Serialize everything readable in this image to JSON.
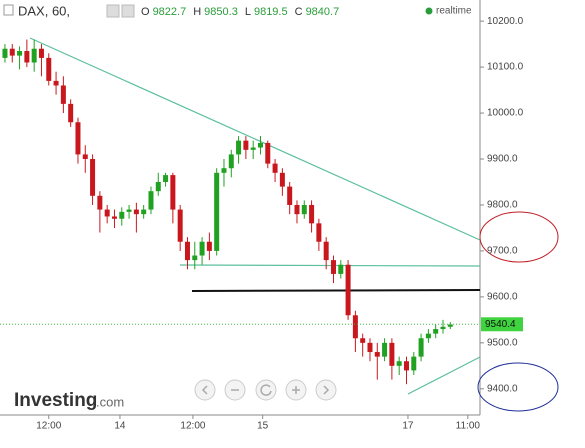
{
  "chart_data": {
    "type": "candlestick",
    "title": "DAX, 60,",
    "ohlc_legend": [
      {
        "label": "O",
        "value": 9822.7
      },
      {
        "label": "H",
        "value": 9850.3
      },
      {
        "label": "L",
        "value": 9819.5
      },
      {
        "label": "C",
        "value": 9840.7
      }
    ],
    "status": "realtime",
    "last_price": 9540.4,
    "up_color": "#21a121",
    "down_color": "#c8181e",
    "open": [
      10120,
      10140,
      10125,
      10135,
      10110,
      10140,
      10120,
      10070,
      10060,
      10020,
      9980,
      9910,
      9900,
      9820,
      9790,
      9775,
      9770,
      9785,
      9790,
      9780,
      9790,
      9830,
      9850,
      9865,
      9790,
      9720,
      9680,
      9690,
      9720,
      9700,
      9870,
      9880,
      9910,
      9940,
      9920,
      9925,
      9935,
      9890,
      9870,
      9840,
      9800,
      9780,
      9800,
      9760,
      9720,
      9680,
      9650,
      9670,
      9560,
      9510,
      9500,
      9480,
      9470,
      9500,
      9450,
      9460,
      9440,
      9470,
      9510,
      9520,
      9530,
      9535
    ],
    "high": [
      10150,
      10150,
      10145,
      10160,
      10160,
      10150,
      10130,
      10090,
      10080,
      10030,
      9990,
      9930,
      9910,
      9830,
      9800,
      9790,
      9795,
      9800,
      9805,
      9800,
      9840,
      9870,
      9870,
      9870,
      9800,
      9730,
      9720,
      9730,
      9740,
      9880,
      9900,
      9920,
      9950,
      9950,
      9940,
      9950,
      9940,
      9900,
      9880,
      9850,
      9810,
      9810,
      9810,
      9770,
      9730,
      9690,
      9680,
      9680,
      9570,
      9520,
      9510,
      9500,
      9510,
      9510,
      9470,
      9470,
      9480,
      9520,
      9530,
      9540,
      9550,
      9545
    ],
    "low": [
      10110,
      10110,
      10095,
      10100,
      10090,
      10080,
      10060,
      10040,
      10000,
      9970,
      9890,
      9870,
      9800,
      9740,
      9760,
      9750,
      9755,
      9770,
      9740,
      9770,
      9780,
      9820,
      9840,
      9760,
      9700,
      9660,
      9660,
      9670,
      9680,
      9690,
      9840,
      9860,
      9890,
      9900,
      9900,
      9910,
      9880,
      9850,
      9820,
      9780,
      9760,
      9770,
      9740,
      9700,
      9660,
      9630,
      9640,
      9550,
      9480,
      9470,
      9460,
      9420,
      9460,
      9420,
      9430,
      9410,
      9430,
      9460,
      9500,
      9510,
      9520,
      9530
    ],
    "close": [
      10140,
      10125,
      10135,
      10110,
      10140,
      10120,
      10070,
      10060,
      10020,
      9980,
      9910,
      9900,
      9820,
      9790,
      9775,
      9770,
      9785,
      9790,
      9780,
      9790,
      9830,
      9850,
      9865,
      9790,
      9720,
      9680,
      9690,
      9720,
      9700,
      9870,
      9880,
      9910,
      9940,
      9920,
      9925,
      9935,
      9890,
      9870,
      9840,
      9800,
      9780,
      9800,
      9760,
      9720,
      9680,
      9650,
      9670,
      9560,
      9510,
      9500,
      9480,
      9470,
      9500,
      9450,
      9460,
      9440,
      9470,
      9510,
      9520,
      9530,
      9535,
      9540
    ],
    "xlim": [
      -0.68,
      65.07
    ],
    "xticks": [
      {
        "value": 6,
        "label": "12:00"
      },
      {
        "value": 15.75,
        "label": "14"
      },
      {
        "value": 25.75,
        "label": "12:00"
      },
      {
        "value": 35.3,
        "label": "15"
      },
      {
        "value": 55.2,
        "label": "17"
      },
      {
        "value": 63.4,
        "label": "11:00"
      }
    ],
    "ylim": [
      9343,
      10246
    ],
    "yticks": [
      {
        "value": 9400,
        "label": "9400.0"
      },
      {
        "value": 9500,
        "label": "9500.0"
      },
      {
        "value": 9600,
        "label": "9600.0"
      },
      {
        "value": 9700,
        "label": "9700.0"
      },
      {
        "value": 9800,
        "label": "9800.0"
      },
      {
        "value": 9900,
        "label": "9900.0"
      },
      {
        "value": 10000,
        "label": "10000.0"
      },
      {
        "value": 10100,
        "label": "10100.0"
      },
      {
        "value": 10200,
        "label": "10200.0"
      }
    ],
    "watermark": "Investing",
    "watermark_suffix": ".com"
  }
}
